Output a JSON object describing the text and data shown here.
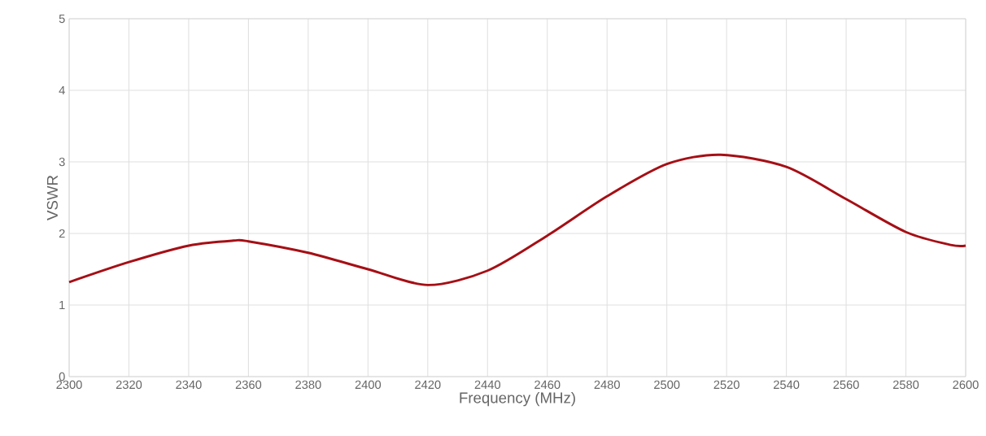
{
  "chart_data": {
    "type": "line",
    "xlabel": "Frequency (MHz)",
    "ylabel": "VSWR",
    "xlim": [
      2300,
      2600
    ],
    "xticks": [
      2300,
      2320,
      2340,
      2360,
      2380,
      2400,
      2420,
      2440,
      2460,
      2480,
      2500,
      2520,
      2540,
      2560,
      2580,
      2600
    ],
    "ylim": [
      0,
      5
    ],
    "yticks": [
      0,
      1,
      2,
      3,
      4,
      5
    ],
    "grid": true,
    "marker": "none",
    "line_style": "solid",
    "x": [
      2300,
      2320,
      2340,
      2355,
      2360,
      2380,
      2400,
      2420,
      2440,
      2460,
      2480,
      2500,
      2518,
      2540,
      2560,
      2580,
      2595,
      2600
    ],
    "series": [
      {
        "color": "#a50f15",
        "values": [
          1.32,
          1.6,
          1.83,
          1.9,
          1.89,
          1.73,
          1.5,
          1.28,
          1.48,
          1.97,
          2.52,
          2.97,
          3.1,
          2.93,
          2.48,
          2.02,
          1.84,
          1.83
        ]
      }
    ]
  }
}
